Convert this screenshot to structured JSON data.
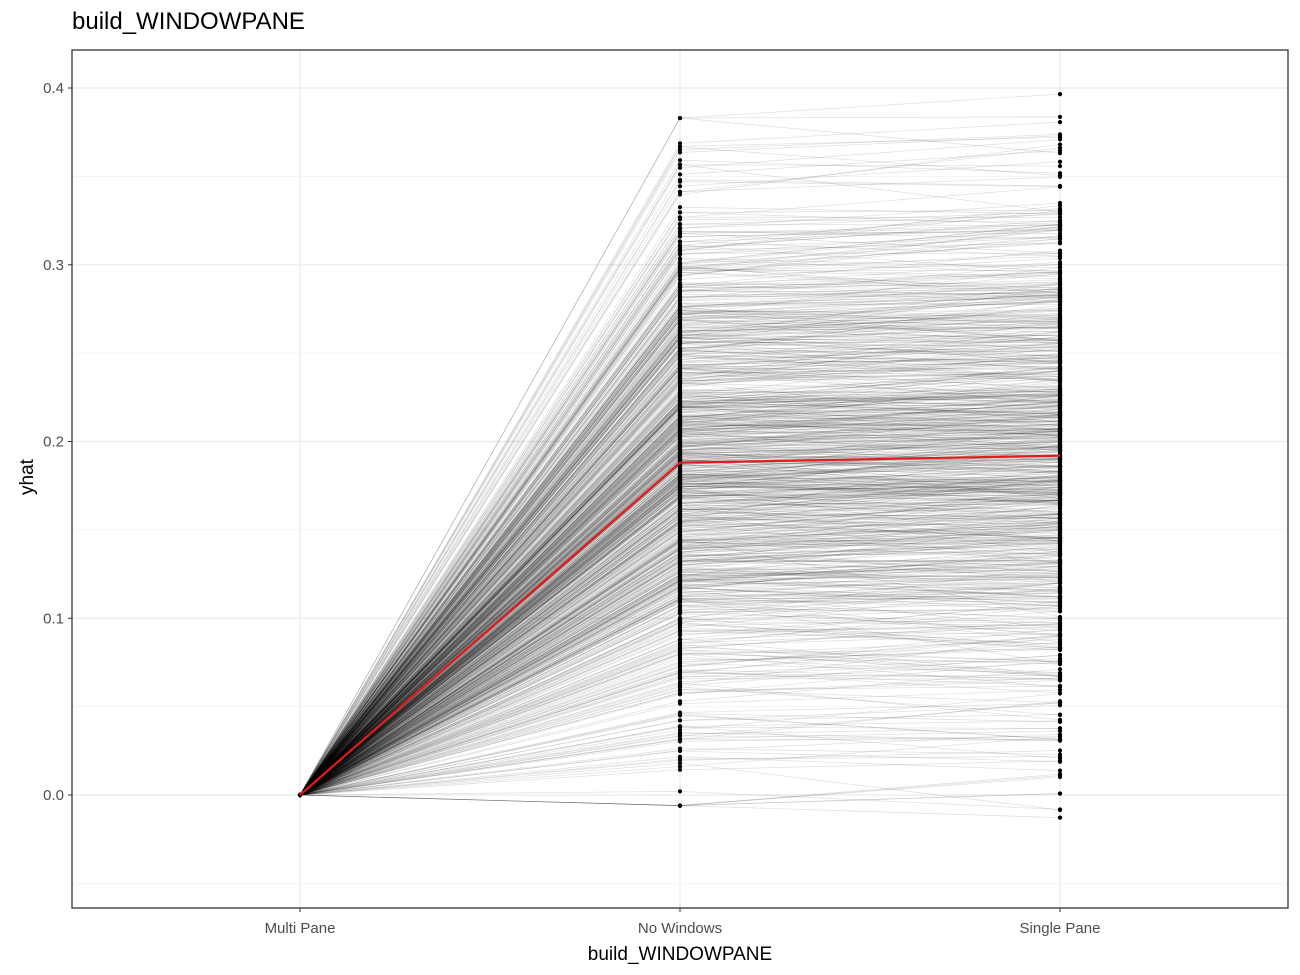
{
  "chart_data": {
    "type": "line",
    "title": "build_WINDOWPANE",
    "xlabel": "build_WINDOWPANE",
    "ylabel": "yhat",
    "categories": [
      "Multi Pane",
      "No Windows",
      "Single Pane"
    ],
    "ylim": [
      -0.065,
      0.42
    ],
    "yticks": [
      0.0,
      0.1,
      0.2,
      0.3,
      0.4
    ],
    "ytick_labels": [
      "0.0",
      "0.1",
      "0.2",
      "0.3",
      "0.4"
    ],
    "grid": true,
    "average_series": {
      "name": "average",
      "color": "#e41a1c",
      "values": [
        0.0,
        0.188,
        0.192
      ]
    },
    "ice_summary": {
      "n_lines": 900,
      "color": "#000000",
      "multi_pane": 0.0,
      "no_windows_range": [
        -0.006,
        0.383
      ],
      "single_pane_range": [
        -0.043,
        0.401
      ]
    }
  }
}
